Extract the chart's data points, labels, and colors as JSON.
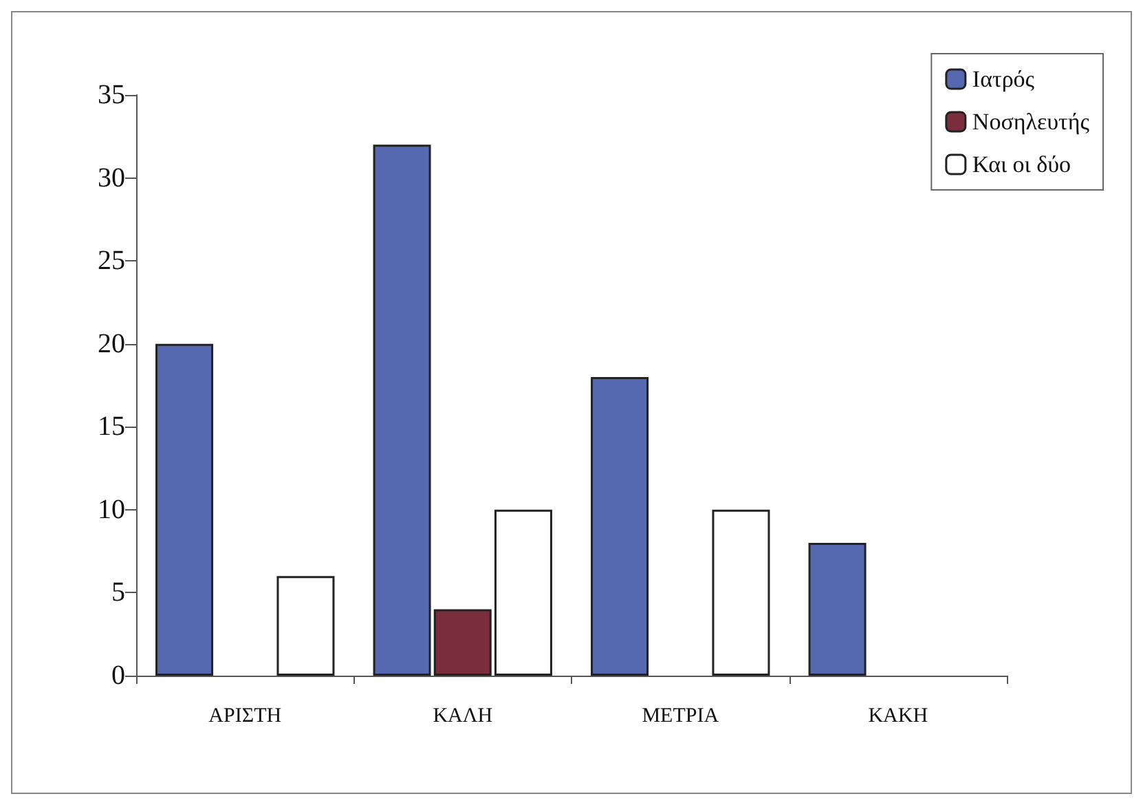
{
  "chart_data": {
    "type": "bar",
    "categories": [
      "ΑΡΙΣΤΗ",
      "ΚΑΛΗ",
      "ΜΕΤΡΙΑ",
      "ΚΑΚΗ"
    ],
    "series": [
      {
        "name": "Ιατρός",
        "color": "#5568b0",
        "values": [
          20,
          32,
          18,
          8
        ]
      },
      {
        "name": "Νοσηλευτής",
        "color": "#7a2e3c",
        "values": [
          0,
          4,
          0,
          0
        ]
      },
      {
        "name": "Και οι δύο",
        "color": "#ffffff",
        "values": [
          6,
          10,
          10,
          0
        ]
      }
    ],
    "ylim": [
      0,
      35
    ],
    "yticks": [
      0,
      5,
      10,
      15,
      20,
      25,
      30,
      35
    ],
    "grid": false,
    "legend": "top right"
  }
}
